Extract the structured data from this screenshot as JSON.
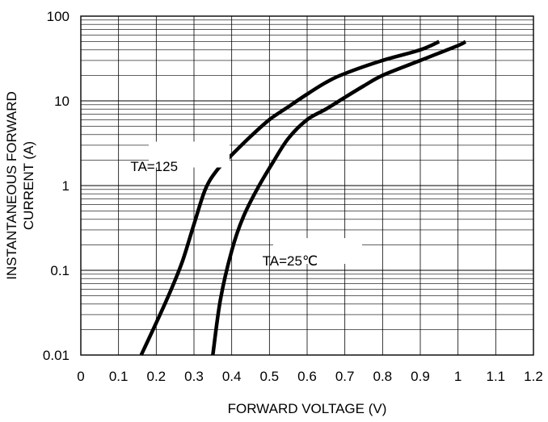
{
  "chart_data": {
    "type": "line",
    "title": "",
    "xlabel": "FORWARD VOLTAGE (V)",
    "ylabel_lines": [
      "INSTANTANEOUS FORWARD",
      "CURRENT (A)"
    ],
    "xlim": [
      0,
      1.2
    ],
    "ylim": [
      0.01,
      100
    ],
    "yscale": "log",
    "grid": true,
    "x_ticks": [
      "0",
      "0.1",
      "0.2",
      "0.3",
      "0.4",
      "0.5",
      "0.6",
      "0.7",
      "0.8",
      "0.9",
      "1",
      "1.1",
      "1.2"
    ],
    "y_ticks": [
      "0.01",
      "0.1",
      "1",
      "10",
      "100"
    ],
    "series": [
      {
        "label": "TA=125",
        "points": [
          [
            0.16,
            0.01
          ],
          [
            0.2,
            0.024
          ],
          [
            0.24,
            0.06
          ],
          [
            0.27,
            0.13
          ],
          [
            0.3,
            0.35
          ],
          [
            0.33,
            0.9
          ],
          [
            0.36,
            1.5
          ],
          [
            0.4,
            2.3
          ],
          [
            0.45,
            3.8
          ],
          [
            0.5,
            6.0
          ],
          [
            0.55,
            8.5
          ],
          [
            0.6,
            12.0
          ],
          [
            0.65,
            16.5
          ],
          [
            0.7,
            21.0
          ],
          [
            0.8,
            30.0
          ],
          [
            0.9,
            40.0
          ],
          [
            0.95,
            50.0
          ]
        ]
      },
      {
        "label": "TA=25℃",
        "points": [
          [
            0.35,
            0.01
          ],
          [
            0.37,
            0.045
          ],
          [
            0.4,
            0.17
          ],
          [
            0.43,
            0.42
          ],
          [
            0.47,
            0.95
          ],
          [
            0.51,
            1.9
          ],
          [
            0.55,
            3.6
          ],
          [
            0.6,
            6.0
          ],
          [
            0.65,
            8.0
          ],
          [
            0.7,
            11.0
          ],
          [
            0.75,
            15.0
          ],
          [
            0.8,
            20.0
          ],
          [
            0.9,
            30.0
          ],
          [
            1.0,
            45.0
          ],
          [
            1.02,
            50.0
          ]
        ]
      }
    ]
  }
}
